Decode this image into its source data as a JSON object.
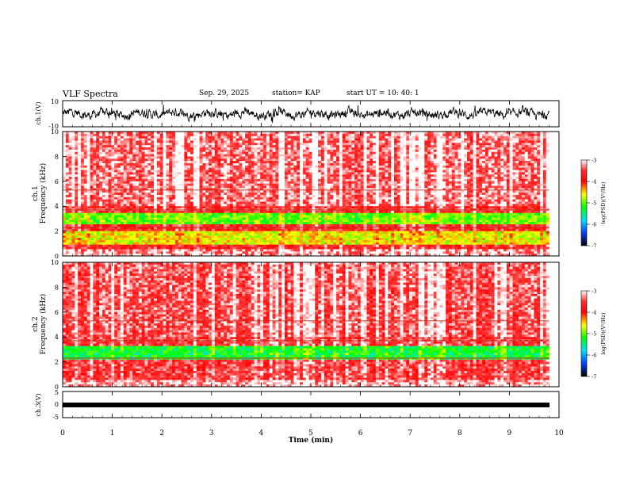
{
  "header": {
    "title": "VLF Spectra",
    "date": "Sep. 29, 2025",
    "station": "station= KAP",
    "start": "start  UT  =   10: 40: 1"
  },
  "chart_data": [
    {
      "type": "line",
      "panel": "ch1-waveform",
      "ylabel": "ch.1(V)",
      "ylim": [
        -10,
        10
      ],
      "yticks": [
        "10",
        "-10"
      ],
      "xlim": [
        0,
        10
      ],
      "series": [
        {
          "name": "ch.1 amplitude",
          "trace": "noisy waveform oscillating roughly between -6 and 6 V"
        }
      ]
    },
    {
      "type": "heatmap",
      "panel": "ch1-spectrogram",
      "ylabel": "ch.1\nFrequency (kHz)",
      "ylabel_line1": "ch.1",
      "ylabel_line2": "Frequency  (kHz)",
      "ylim": [
        0,
        10
      ],
      "yticks": [
        "0",
        "2",
        "4",
        "6",
        "8",
        "10"
      ],
      "xlim": [
        0,
        9.8
      ],
      "colorbar": {
        "label": "log(PSD)(V²/Hz)",
        "range": [
          -7,
          -3
        ],
        "ticks": [
          "-3",
          "-4",
          "-5",
          "-6",
          "-7"
        ]
      },
      "bands": [
        {
          "freq": [
            3.6,
            3.9
          ],
          "level": -3.5
        },
        {
          "freq": [
            2.5,
            3.5
          ],
          "level": -5.0
        },
        {
          "freq": [
            1.0,
            2.0
          ],
          "level": -4.6
        },
        {
          "freq": [
            4.0,
            10.0
          ],
          "level": -3.3
        }
      ]
    },
    {
      "type": "heatmap",
      "panel": "ch2-spectrogram",
      "ylabel_line1": "ch.2",
      "ylabel_line2": "Frequency  (kHz)",
      "ylim": [
        0,
        10
      ],
      "yticks": [
        "0",
        "2",
        "4",
        "6",
        "8",
        "10"
      ],
      "xlim": [
        0,
        9.8
      ],
      "colorbar": {
        "label": "log(PSD)(V²/Hz)",
        "range": [
          -7,
          -3
        ],
        "ticks": [
          "-3",
          "-4",
          "-5",
          "-6",
          "-7"
        ]
      },
      "bands": [
        {
          "freq": [
            2.2,
            3.3
          ],
          "level": -5.3
        },
        {
          "freq": [
            4.0,
            10.0
          ],
          "level": -3.4
        }
      ]
    },
    {
      "type": "line",
      "panel": "ch3-waveform",
      "ylabel": "ch.3(V)",
      "ylim": [
        -5,
        5
      ],
      "yticks": [
        "5",
        "0",
        "-5"
      ],
      "xlim": [
        0,
        10
      ],
      "series": [
        {
          "name": "ch.3 amplitude",
          "trace": "dense signal saturating near 0 V baseline"
        }
      ]
    }
  ],
  "xaxis": {
    "label": "Time  (min)",
    "range": [
      0,
      10
    ],
    "ticks": [
      "0",
      "1",
      "2",
      "3",
      "4",
      "5",
      "6",
      "7",
      "8",
      "9",
      "10"
    ]
  }
}
